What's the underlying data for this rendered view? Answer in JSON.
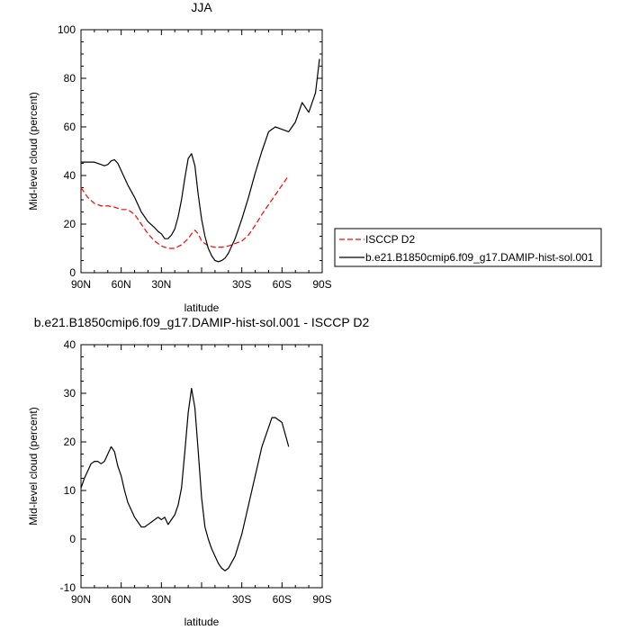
{
  "chart_data": [
    {
      "type": "line",
      "title": "JJA",
      "xlabel": "latitude",
      "ylabel": "Mid-level cloud (percent)",
      "xlim": [
        90,
        -90
      ],
      "ylim": [
        0,
        100
      ],
      "xticks": [
        90,
        60,
        30,
        0,
        -30,
        -60,
        -90
      ],
      "xtick_labels": [
        "90N",
        "60N",
        "30N",
        "",
        "30S",
        "60S",
        "90S"
      ],
      "yticks": [
        0,
        20,
        40,
        60,
        80,
        100
      ],
      "ytick_labels": [
        "0",
        "20",
        "40",
        "60",
        "80",
        "100"
      ],
      "legend": "bottom-right, outside",
      "series": [
        {
          "name": "ISCCP D2",
          "color": "#ff0000",
          "style": "dashed",
          "x": [
            90,
            85,
            80,
            75,
            70,
            65,
            60,
            55,
            50,
            45,
            40,
            35,
            30,
            25,
            20,
            15,
            10,
            7.5,
            5,
            2.5,
            0,
            -5,
            -10,
            -15,
            -20,
            -25,
            -30,
            -35,
            -40,
            -45,
            -50,
            -55,
            -60,
            -65
          ],
          "y": [
            35,
            31,
            28.5,
            27.5,
            27.5,
            27,
            26,
            26,
            24,
            20,
            16,
            13,
            11,
            10,
            10,
            11.5,
            14,
            16,
            17.5,
            16,
            13,
            11,
            10.5,
            10.5,
            11,
            12,
            13,
            15.5,
            19.5,
            24,
            28,
            32,
            36,
            40
          ]
        },
        {
          "name": "b.e21.B1850cmip6.f09_g17.DAMIP-hist-sol.001",
          "color": "#000000",
          "style": "solid",
          "x": [
            90,
            85,
            80,
            75,
            72.5,
            70,
            67.5,
            65,
            62.5,
            60,
            55,
            50,
            45,
            40,
            35,
            32.5,
            30,
            27.5,
            25,
            22.5,
            20,
            17.5,
            15,
            12.5,
            10,
            7.5,
            5,
            2.5,
            0,
            -2.5,
            -5,
            -7.5,
            -10,
            -12.5,
            -15,
            -17.5,
            -20,
            -25,
            -30,
            -35,
            -40,
            -45,
            -50,
            -55,
            -60,
            -65,
            -70,
            -75,
            -80,
            -85,
            -88
          ],
          "y": [
            45.5,
            45.5,
            45.5,
            44.5,
            44,
            44.5,
            46,
            46.5,
            45,
            42,
            36,
            31,
            25,
            21,
            18.5,
            17,
            16,
            14,
            14,
            15.5,
            18,
            23,
            30,
            39,
            47,
            49,
            44,
            32,
            22,
            15,
            10,
            7,
            5,
            4.5,
            5,
            6,
            8,
            14,
            22,
            31,
            41,
            50,
            58,
            60,
            59,
            58,
            62,
            70,
            66,
            74,
            88
          ]
        }
      ]
    },
    {
      "type": "line",
      "title": "b.e21.B1850cmip6.f09_g17.DAMIP-hist-sol.001 - ISCCP D2",
      "xlabel": "latitude",
      "ylabel": "Mid-level cloud (percent)",
      "xlim": [
        90,
        -90
      ],
      "ylim": [
        -10,
        40
      ],
      "xticks": [
        90,
        60,
        30,
        0,
        -30,
        -60,
        -90
      ],
      "xtick_labels": [
        "90N",
        "60N",
        "30N",
        "",
        "30S",
        "60S",
        "90S"
      ],
      "yticks": [
        -10,
        0,
        10,
        20,
        30,
        40
      ],
      "ytick_labels": [
        "-10",
        "0",
        "10",
        "20",
        "30",
        "40"
      ],
      "series": [
        {
          "color": "#000000",
          "style": "solid",
          "x": [
            90,
            87.5,
            85,
            82.5,
            80,
            77.5,
            75,
            72.5,
            70,
            67.5,
            65,
            62.5,
            60,
            57.5,
            55,
            50,
            45,
            42.5,
            40,
            37.5,
            35,
            32.5,
            30,
            27.5,
            25,
            22.5,
            20,
            17.5,
            15,
            12.5,
            10,
            7.5,
            5,
            2.5,
            0,
            -2.5,
            -5,
            -7.5,
            -10,
            -12.5,
            -15,
            -17.5,
            -20,
            -25,
            -30,
            -35,
            -40,
            -45,
            -50,
            -52.5,
            -55,
            -60,
            -65
          ],
          "y": [
            10.5,
            12.5,
            14,
            15.5,
            16,
            16,
            15.5,
            16,
            17.5,
            19,
            18,
            15,
            13,
            10,
            7.5,
            4.5,
            2.5,
            2.5,
            3,
            3.5,
            4,
            4.5,
            4,
            4.5,
            3,
            4,
            5,
            7,
            10.5,
            18,
            26,
            31,
            27,
            18,
            8.5,
            2.5,
            0,
            -2,
            -3.5,
            -5,
            -6,
            -6.5,
            -6,
            -3.5,
            1,
            7,
            13,
            19,
            23,
            25,
            25,
            24,
            19
          ]
        }
      ]
    }
  ]
}
